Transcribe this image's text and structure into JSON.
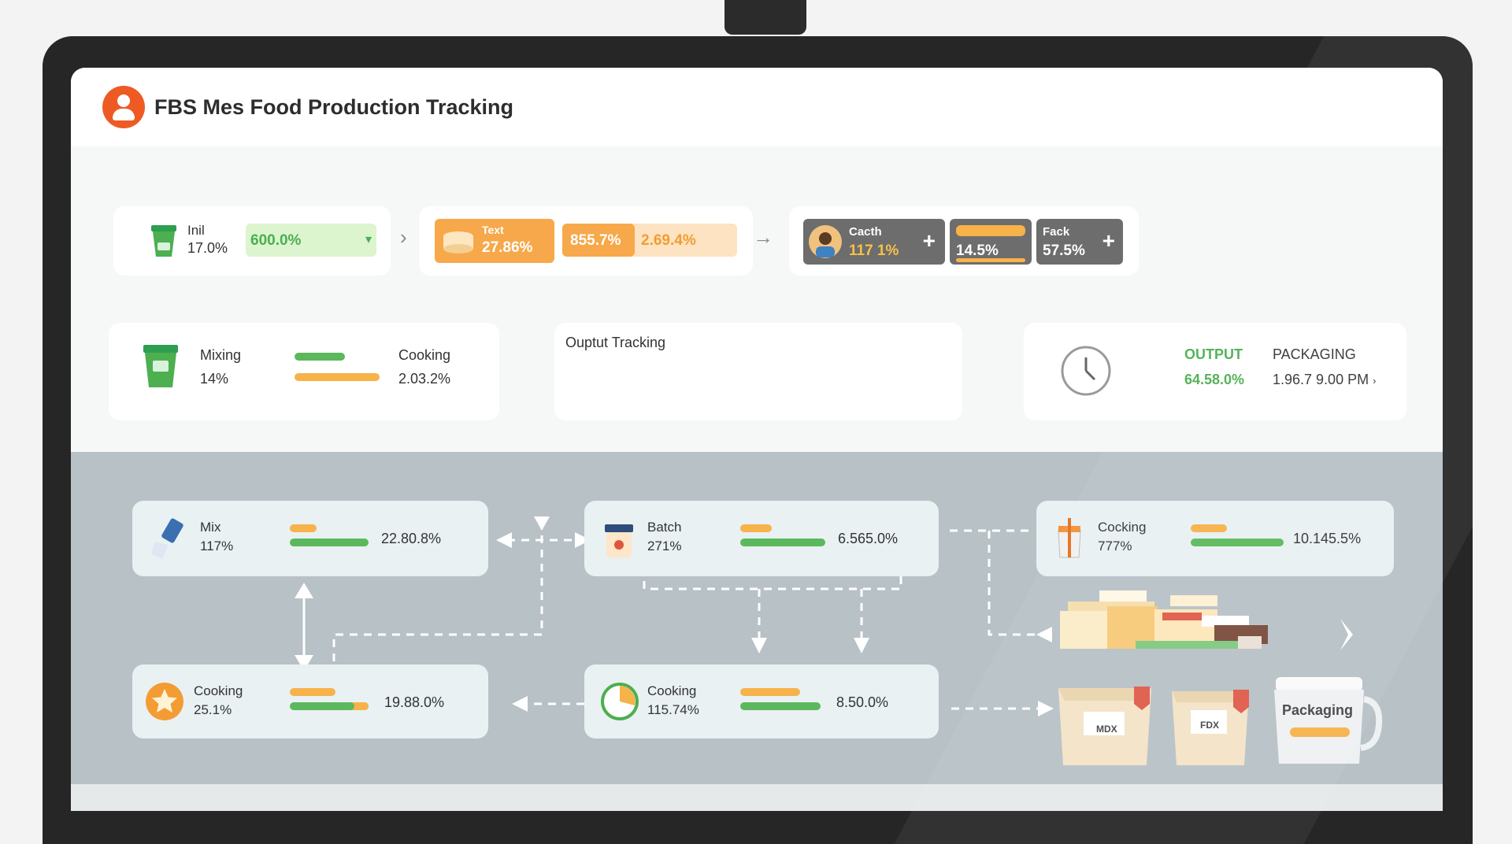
{
  "app": {
    "title": "FBS Mes Food Production Tracking"
  },
  "top_row": {
    "inil": {
      "label": "Inil",
      "value": "17.0%",
      "badge": "600.0%"
    },
    "text_group": {
      "label": "Text",
      "value": "27.86%",
      "mid": "855.7%",
      "right": "2.69.4%"
    },
    "catch": {
      "label": "Cacth",
      "value": "117 1%"
    },
    "mid_value": "14.5%",
    "fack": {
      "label": "Fack",
      "value": "57.5%"
    }
  },
  "mid_row": {
    "mixing": {
      "label": "Mixing",
      "value": "14%"
    },
    "cooking": {
      "label": "Cooking",
      "value": "2.03.2%"
    },
    "output_tracking_title": "Ouptut Tracking",
    "output": {
      "label": "OUTPUT",
      "value": "64.58.0%"
    },
    "packaging": {
      "label": "PACKAGING",
      "value": "1.96.7 9.00 PM",
      "suffix": "›"
    }
  },
  "process": {
    "mix": {
      "label": "Mix",
      "pct": "117%",
      "value": "22.80.8%"
    },
    "batch": {
      "label": "Batch",
      "pct": "271%",
      "value": "6.565.0%"
    },
    "cocking": {
      "label": "Cocking",
      "pct": "777%",
      "value": "10.145.5%"
    },
    "cooking_a": {
      "label": "Cooking",
      "pct": "25.1%",
      "value": "19.88.0%"
    },
    "cooking_b": {
      "label": "Cooking",
      "pct": "115.74%",
      "value": "8.50.0%"
    }
  },
  "packages": {
    "bag1": "MDX",
    "bag2": "FDX",
    "jar": "Packaging"
  },
  "colors": {
    "green": "#5cb85c",
    "orange": "#f7b24a",
    "accent": "#ee5a24",
    "panel": "#b7c1c6",
    "output_green": "#4caf50"
  }
}
